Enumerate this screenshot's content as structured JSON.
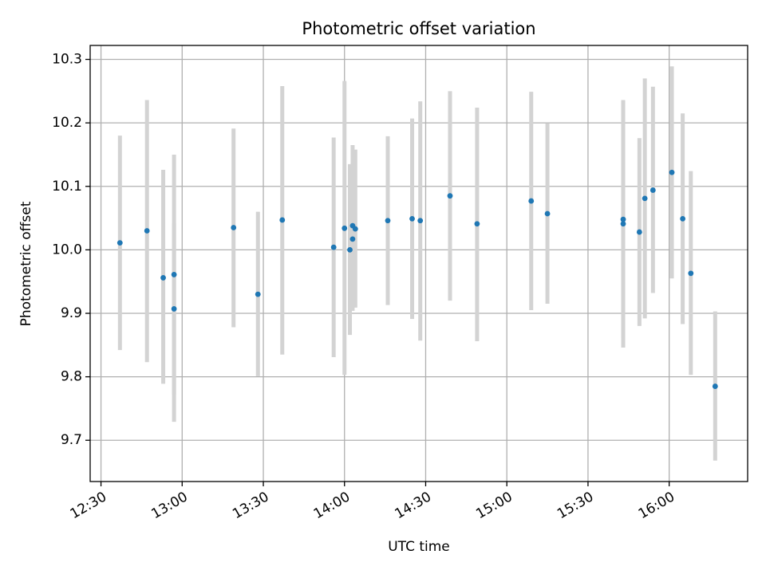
{
  "chart_data": {
    "type": "scatter",
    "title": "Photometric offset variation",
    "xlabel": "UTC time",
    "ylabel": "Photometric offset",
    "xlim": [
      "12:26",
      "16:29"
    ],
    "ylim": [
      9.635,
      10.322
    ],
    "x_ticks": [
      "12:30",
      "13:00",
      "13:30",
      "14:00",
      "14:30",
      "15:00",
      "15:30",
      "16:00"
    ],
    "y_ticks": [
      "9.7",
      "9.8",
      "9.9",
      "10.0",
      "10.1",
      "10.2",
      "10.3"
    ],
    "grid": true,
    "marker_color": "#1f77b4",
    "errorbar_color": "#d3d3d3",
    "points": [
      {
        "t": "12:37",
        "y": 10.011,
        "lo": 9.842,
        "hi": 10.18
      },
      {
        "t": "12:47",
        "y": 10.03,
        "lo": 9.823,
        "hi": 10.236
      },
      {
        "t": "12:53",
        "y": 9.956,
        "lo": 9.789,
        "hi": 10.126
      },
      {
        "t": "12:57",
        "y": 9.907,
        "lo": 9.772,
        "hi": 10.042
      },
      {
        "t": "12:57",
        "y": 9.961,
        "lo": 9.729,
        "hi": 10.15
      },
      {
        "t": "13:19",
        "y": 10.035,
        "lo": 9.878,
        "hi": 10.191
      },
      {
        "t": "13:28",
        "y": 9.93,
        "lo": 9.801,
        "hi": 10.06
      },
      {
        "t": "13:37",
        "y": 10.047,
        "lo": 9.835,
        "hi": 10.258
      },
      {
        "t": "13:56",
        "y": 10.004,
        "lo": 9.831,
        "hi": 10.177
      },
      {
        "t": "14:00",
        "y": 10.034,
        "lo": 9.803,
        "hi": 10.266
      },
      {
        "t": "14:02",
        "y": 10.0,
        "lo": 9.866,
        "hi": 10.135
      },
      {
        "t": "14:03",
        "y": 10.017,
        "lo": 9.904,
        "hi": 10.13
      },
      {
        "t": "14:03",
        "y": 10.038,
        "lo": 9.912,
        "hi": 10.165
      },
      {
        "t": "14:04",
        "y": 10.033,
        "lo": 9.909,
        "hi": 10.158
      },
      {
        "t": "14:16",
        "y": 10.046,
        "lo": 9.913,
        "hi": 10.179
      },
      {
        "t": "14:25",
        "y": 10.049,
        "lo": 9.891,
        "hi": 10.207
      },
      {
        "t": "14:28",
        "y": 10.046,
        "lo": 9.857,
        "hi": 10.234
      },
      {
        "t": "14:39",
        "y": 10.085,
        "lo": 9.92,
        "hi": 10.25
      },
      {
        "t": "14:49",
        "y": 10.041,
        "lo": 9.856,
        "hi": 10.224
      },
      {
        "t": "15:09",
        "y": 10.077,
        "lo": 9.905,
        "hi": 10.249
      },
      {
        "t": "15:15",
        "y": 10.057,
        "lo": 9.915,
        "hi": 10.199
      },
      {
        "t": "15:43",
        "y": 10.041,
        "lo": 9.846,
        "hi": 10.236
      },
      {
        "t": "15:43",
        "y": 10.048,
        "lo": 9.861,
        "hi": 10.236
      },
      {
        "t": "15:49",
        "y": 10.028,
        "lo": 9.88,
        "hi": 10.176
      },
      {
        "t": "15:51",
        "y": 10.081,
        "lo": 9.892,
        "hi": 10.27
      },
      {
        "t": "15:54",
        "y": 10.094,
        "lo": 9.932,
        "hi": 10.257
      },
      {
        "t": "16:01",
        "y": 10.122,
        "lo": 9.955,
        "hi": 10.289
      },
      {
        "t": "16:05",
        "y": 10.049,
        "lo": 9.883,
        "hi": 10.215
      },
      {
        "t": "16:08",
        "y": 9.963,
        "lo": 9.803,
        "hi": 10.124
      },
      {
        "t": "16:17",
        "y": 9.785,
        "lo": 9.668,
        "hi": 9.903
      }
    ]
  }
}
